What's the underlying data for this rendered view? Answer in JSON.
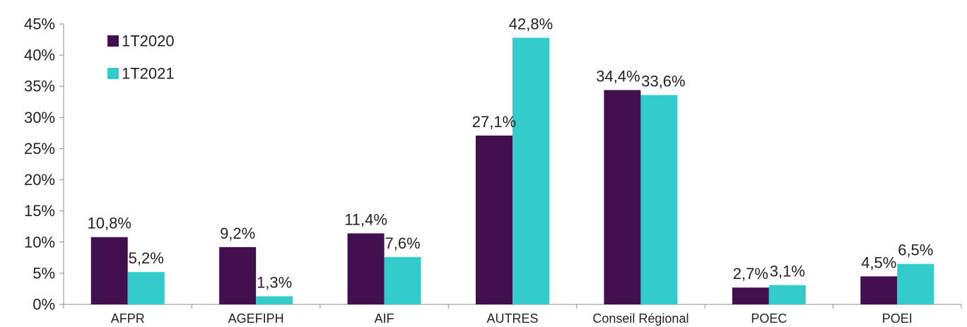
{
  "chart_data": {
    "type": "bar",
    "title": "",
    "xlabel": "",
    "ylabel": "",
    "ylim": [
      0,
      45
    ],
    "ytick_values": [
      0,
      5,
      10,
      15,
      20,
      25,
      30,
      35,
      40,
      45
    ],
    "ytick_labels": [
      "0%",
      "5%",
      "10%",
      "15%",
      "20%",
      "25%",
      "30%",
      "35%",
      "40%",
      "45%"
    ],
    "grid": false,
    "legend_position": "top-left",
    "categories": [
      "AFPR",
      "AGEFIPH",
      "AIF",
      "AUTRES",
      "Conseil Régional",
      "POEC",
      "POEI"
    ],
    "series": [
      {
        "name": "1T2020",
        "color": "#43104f",
        "values": [
          10.8,
          9.2,
          11.4,
          27.1,
          34.4,
          2.7,
          4.5
        ],
        "labels": [
          "10,8%",
          "9,2%",
          "11,4%",
          "27,1%",
          "34,4%",
          "2,7%",
          "4,5%"
        ]
      },
      {
        "name": "1T2021",
        "color": "#33cccc",
        "values": [
          5.2,
          1.3,
          7.6,
          42.8,
          33.6,
          3.1,
          6.5
        ],
        "labels": [
          "5,2%",
          "1,3%",
          "7,6%",
          "42,8%",
          "33,6%",
          "3,1%",
          "6,5%"
        ]
      }
    ]
  }
}
